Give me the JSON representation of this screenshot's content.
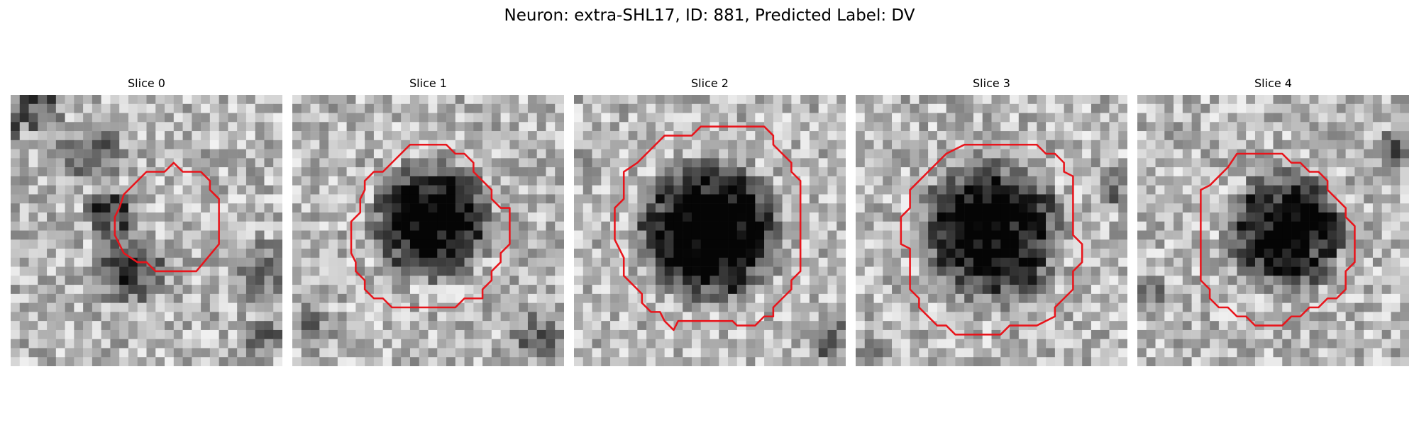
{
  "suptitle": "Neuron: extra-SHL17, ID: 881, Predicted Label: DV",
  "panels": [
    {
      "title": "Slice 0",
      "image": "grayscale-microscopy-patch",
      "outline_color": "#e8151c"
    },
    {
      "title": "Slice 1",
      "image": "grayscale-microscopy-patch",
      "outline_color": "#e8151c"
    },
    {
      "title": "Slice 2",
      "image": "grayscale-microscopy-patch",
      "outline_color": "#e8151c"
    },
    {
      "title": "Slice 3",
      "image": "grayscale-microscopy-patch",
      "outline_color": "#e8151c"
    },
    {
      "title": "Slice 4",
      "image": "grayscale-microscopy-patch",
      "outline_color": "#e8151c"
    }
  ]
}
